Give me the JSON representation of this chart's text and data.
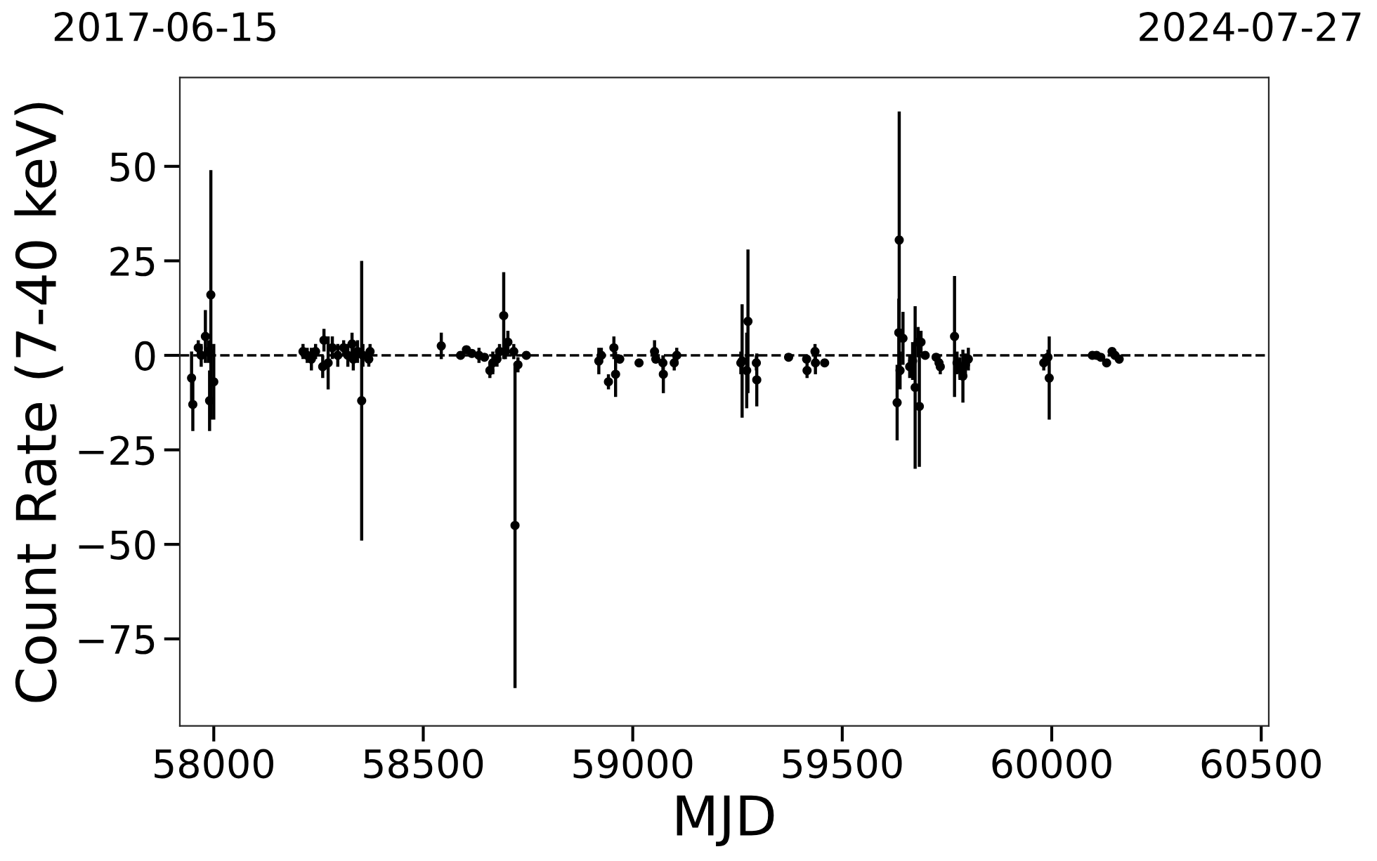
{
  "chart_data": {
    "type": "scatter",
    "xlabel": "MJD",
    "ylabel": "Count Rate (7-40 keV)",
    "xlim": [
      57919,
      60518
    ],
    "xticks": [
      58000,
      58500,
      59000,
      59500,
      60000,
      60500
    ],
    "annotations": [
      "2017-06-15",
      "2024-07-27"
    ],
    "ylim": [
      -98,
      73.5
    ],
    "yticks": [
      {
        "value": -75,
        "label": "−75"
      },
      {
        "value": -50,
        "label": "−50"
      },
      {
        "value": -25,
        "label": "−25"
      },
      0,
      25,
      50
    ],
    "marker": "circle",
    "grid": false,
    "ref_lines": [
      {
        "axis": "y",
        "value": 0,
        "color": "#000000",
        "line_style": "dashed"
      }
    ],
    "series": [
      {
        "color": "#000000",
        "x": [
          57947,
          57950,
          57963,
          57970,
          57980,
          57987,
          57990,
          57993,
          58000,
          58213,
          58223,
          58233,
          58243,
          58260,
          58263,
          58273,
          58283,
          58296,
          58310,
          58320,
          58330,
          58333,
          58343,
          58353,
          58356,
          58370,
          58373,
          58543,
          58589,
          58603,
          58616,
          58633,
          58646,
          58659,
          58666,
          58676,
          58682,
          58692,
          58696,
          58702,
          58716,
          58719,
          58726,
          58746,
          58919,
          58925,
          58942,
          58955,
          58959,
          58969,
          59015,
          59052,
          59055,
          59072,
          59073,
          59099,
          59105,
          59258,
          59261,
          59272,
          59275,
          59295,
          59296,
          59372,
          59415,
          59416,
          59435,
          59436,
          59458,
          59631,
          59635,
          59636,
          59638,
          59645,
          59661,
          59668,
          59674,
          59681,
          59684,
          59688,
          59698,
          59724,
          59731,
          59734,
          59768,
          59774,
          59781,
          59788,
          59794,
          59801,
          59981,
          59991,
          59994,
          60097,
          60107,
          60117,
          60131,
          60144,
          60151,
          60161
        ],
        "values": [
          -6,
          -13,
          2,
          0,
          5,
          1,
          -12,
          16,
          -7,
          1,
          0,
          -1,
          1,
          -3,
          4,
          -2,
          2,
          0,
          2,
          0,
          3,
          -1,
          1,
          -12,
          0,
          -1,
          1,
          2.5,
          0,
          1.5,
          0.5,
          0,
          -0.5,
          -4,
          -2,
          -1,
          1,
          10.5,
          1,
          3.5,
          1,
          -45,
          -2.5,
          0,
          -1.5,
          0,
          -7,
          2,
          -5,
          -1,
          -2,
          1,
          -1,
          -2,
          -5,
          -2,
          0,
          -2,
          -1.5,
          -4,
          9,
          -2,
          -6.5,
          -0.5,
          -1,
          -4,
          1,
          -2,
          -2,
          -12.5,
          6,
          30.5,
          -4,
          4.5,
          -3,
          -1.5,
          -8.5,
          3.5,
          -13.5,
          3.5,
          0,
          -0.5,
          -2,
          -3,
          5,
          -2,
          -3.5,
          -5.5,
          -2.5,
          -1,
          -2,
          -0.5,
          -6,
          0,
          0,
          -0.5,
          -2,
          1,
          0,
          -1
        ],
        "errors": [
          7,
          7,
          2,
          3,
          7,
          3,
          8,
          33,
          10,
          2,
          2,
          3,
          2,
          3,
          3,
          7,
          3,
          3,
          2,
          3,
          3,
          3,
          3,
          37,
          3,
          2,
          2,
          3.5,
          1,
          1,
          1,
          2,
          1,
          2,
          3,
          2,
          2,
          11.5,
          2,
          3,
          2,
          43,
          2,
          1,
          3.5,
          2,
          2,
          3,
          6,
          1,
          1,
          3,
          1,
          2,
          5,
          2,
          2,
          3,
          15,
          10,
          19,
          2,
          7,
          1,
          1,
          2,
          2,
          3,
          1,
          10,
          9,
          34,
          5,
          7,
          3,
          5,
          21.5,
          4,
          16,
          3,
          1,
          1,
          2,
          2,
          16,
          3,
          3,
          7,
          3,
          3,
          2,
          2,
          11,
          1,
          1,
          1,
          1,
          1,
          1,
          1
        ]
      }
    ]
  }
}
